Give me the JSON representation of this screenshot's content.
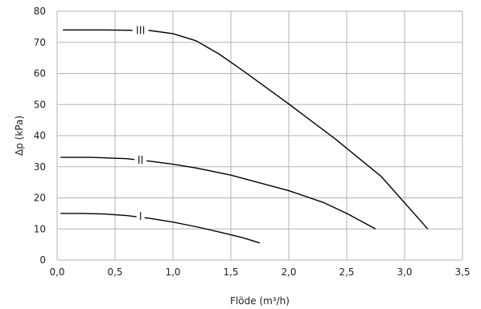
{
  "chart_data": {
    "type": "line",
    "xlabel": "Flöde (m³/h)",
    "ylabel": "Δp (kPa)",
    "xlim": [
      0,
      3.5
    ],
    "ylim": [
      0,
      80
    ],
    "x_ticks": [
      "0,0",
      "0,5",
      "1,0",
      "1,5",
      "2,0",
      "2,5",
      "3,0",
      "3,5"
    ],
    "y_ticks": [
      "0",
      "10",
      "20",
      "30",
      "40",
      "50",
      "60",
      "70",
      "80"
    ],
    "grid": true,
    "legend": "none",
    "series": [
      {
        "name": "I",
        "color": "#000000",
        "points": [
          [
            0.03,
            15.0
          ],
          [
            0.2,
            15.0
          ],
          [
            0.4,
            14.8
          ],
          [
            0.6,
            14.3
          ],
          [
            0.8,
            13.4
          ],
          [
            1.0,
            12.2
          ],
          [
            1.2,
            10.7
          ],
          [
            1.4,
            9.0
          ],
          [
            1.6,
            7.2
          ],
          [
            1.75,
            5.5
          ]
        ]
      },
      {
        "name": "II",
        "color": "#000000",
        "points": [
          [
            0.03,
            33.0
          ],
          [
            0.3,
            33.0
          ],
          [
            0.6,
            32.6
          ],
          [
            0.8,
            31.8
          ],
          [
            1.0,
            30.8
          ],
          [
            1.2,
            29.6
          ],
          [
            1.5,
            27.3
          ],
          [
            1.8,
            24.3
          ],
          [
            2.0,
            22.3
          ],
          [
            2.3,
            18.5
          ],
          [
            2.5,
            15.0
          ],
          [
            2.75,
            10.0
          ]
        ]
      },
      {
        "name": "III",
        "color": "#000000",
        "points": [
          [
            0.05,
            74.0
          ],
          [
            0.4,
            74.0
          ],
          [
            0.8,
            73.8
          ],
          [
            1.0,
            72.8
          ],
          [
            1.2,
            70.5
          ],
          [
            1.4,
            66.2
          ],
          [
            1.6,
            61.0
          ],
          [
            2.0,
            50.2
          ],
          [
            2.4,
            39.0
          ],
          [
            2.8,
            26.8
          ],
          [
            3.2,
            10.0
          ]
        ]
      }
    ],
    "curve_labels": [
      {
        "text": "I",
        "x": 0.72,
        "y": 14.2
      },
      {
        "text": "II",
        "x": 0.72,
        "y": 32.2
      },
      {
        "text": "III",
        "x": 0.72,
        "y": 74.0
      }
    ]
  }
}
